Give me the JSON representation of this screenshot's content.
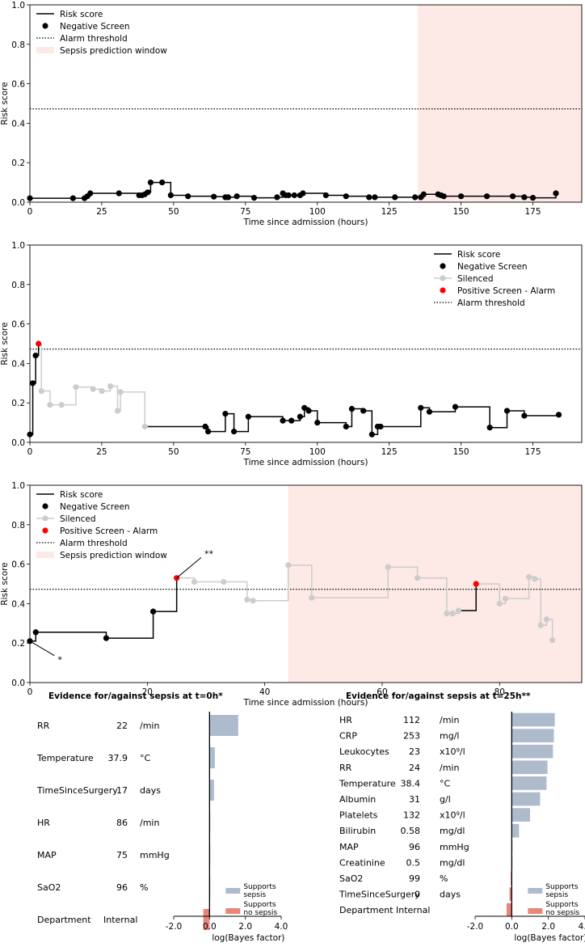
{
  "colors": {
    "line": "#000000",
    "negative": "#000000",
    "silenced": "#cccccc",
    "positive": "#ff0000",
    "window": "#fde9e6",
    "supports_sepsis": "#aebbcd",
    "supports_no_sepsis": "#e8867a"
  },
  "chart_data": [
    {
      "type": "line",
      "title": "",
      "xlabel": "Time since admission (hours)",
      "ylabel": "Risk score",
      "xlim": [
        0,
        192
      ],
      "ylim": [
        0,
        1.0
      ],
      "xticks": [
        0,
        25,
        50,
        75,
        100,
        125,
        150,
        175
      ],
      "yticks": [
        0.0,
        0.2,
        0.4,
        0.6,
        0.8,
        1.0
      ],
      "threshold": 0.473,
      "prediction_window": [
        135,
        192
      ],
      "legend": [
        "Risk score",
        "Negative Screen",
        "Alarm threshold",
        "Sepsis prediction window"
      ],
      "legend_position": "top-left",
      "series": [
        {
          "name": "Risk score",
          "status": "negative",
          "x": [
            0,
            15,
            19,
            20,
            21,
            31,
            38,
            39,
            40,
            41,
            42,
            46,
            49,
            55,
            64,
            68,
            69,
            72,
            78,
            86,
            88,
            89,
            90,
            92,
            94,
            95,
            103,
            110,
            118,
            120,
            127,
            134,
            136,
            137,
            142,
            143,
            144,
            150,
            159,
            168,
            172,
            175,
            183
          ],
          "y": [
            0.02,
            0.02,
            0.02,
            0.03,
            0.045,
            0.045,
            0.035,
            0.035,
            0.04,
            0.05,
            0.1,
            0.1,
            0.035,
            0.03,
            0.028,
            0.025,
            0.025,
            0.03,
            0.022,
            0.025,
            0.045,
            0.035,
            0.035,
            0.035,
            0.035,
            0.045,
            0.035,
            0.03,
            0.025,
            0.025,
            0.025,
            0.025,
            0.025,
            0.04,
            0.04,
            0.035,
            0.03,
            0.03,
            0.03,
            0.03,
            0.025,
            0.022,
            0.045
          ]
        }
      ]
    },
    {
      "type": "line",
      "title": "",
      "xlabel": "Time since admission (hours)",
      "ylabel": "Risk score",
      "xlim": [
        0,
        192
      ],
      "ylim": [
        0,
        1.0
      ],
      "xticks": [
        0,
        25,
        50,
        75,
        100,
        125,
        150,
        175
      ],
      "yticks": [
        0.0,
        0.2,
        0.4,
        0.6,
        0.8,
        1.0
      ],
      "threshold": 0.473,
      "prediction_window": null,
      "legend": [
        "Risk score",
        "Negative Screen",
        "Silenced",
        "Positive Screen - Alarm",
        "Alarm threshold"
      ],
      "legend_position": "top-right",
      "points": [
        {
          "x": 0,
          "y": 0.04,
          "s": "negative"
        },
        {
          "x": 1,
          "y": 0.3,
          "s": "negative"
        },
        {
          "x": 2,
          "y": 0.44,
          "s": "negative"
        },
        {
          "x": 3,
          "y": 0.5,
          "s": "positive"
        },
        {
          "x": 4,
          "y": 0.26,
          "s": "silenced"
        },
        {
          "x": 7,
          "y": 0.19,
          "s": "silenced"
        },
        {
          "x": 11,
          "y": 0.19,
          "s": "silenced"
        },
        {
          "x": 16,
          "y": 0.28,
          "s": "silenced"
        },
        {
          "x": 22,
          "y": 0.27,
          "s": "silenced"
        },
        {
          "x": 25,
          "y": 0.26,
          "s": "silenced"
        },
        {
          "x": 28,
          "y": 0.285,
          "s": "silenced"
        },
        {
          "x": 30.5,
          "y": 0.16,
          "s": "silenced"
        },
        {
          "x": 31.5,
          "y": 0.255,
          "s": "silenced"
        },
        {
          "x": 40,
          "y": 0.08,
          "s": "silenced"
        },
        {
          "x": 61,
          "y": 0.08,
          "s": "negative"
        },
        {
          "x": 62,
          "y": 0.055,
          "s": "negative"
        },
        {
          "x": 68,
          "y": 0.145,
          "s": "negative"
        },
        {
          "x": 71,
          "y": 0.055,
          "s": "negative"
        },
        {
          "x": 76,
          "y": 0.13,
          "s": "negative"
        },
        {
          "x": 88,
          "y": 0.11,
          "s": "negative"
        },
        {
          "x": 91,
          "y": 0.11,
          "s": "negative"
        },
        {
          "x": 94,
          "y": 0.13,
          "s": "negative"
        },
        {
          "x": 95.5,
          "y": 0.175,
          "s": "negative"
        },
        {
          "x": 97,
          "y": 0.16,
          "s": "negative"
        },
        {
          "x": 100,
          "y": 0.1,
          "s": "negative"
        },
        {
          "x": 110,
          "y": 0.08,
          "s": "negative"
        },
        {
          "x": 112,
          "y": 0.17,
          "s": "negative"
        },
        {
          "x": 116,
          "y": 0.16,
          "s": "negative"
        },
        {
          "x": 119,
          "y": 0.04,
          "s": "negative"
        },
        {
          "x": 121,
          "y": 0.08,
          "s": "negative"
        },
        {
          "x": 122,
          "y": 0.08,
          "s": "negative"
        },
        {
          "x": 136,
          "y": 0.175,
          "s": "negative"
        },
        {
          "x": 139,
          "y": 0.155,
          "s": "negative"
        },
        {
          "x": 148,
          "y": 0.18,
          "s": "negative"
        },
        {
          "x": 160,
          "y": 0.075,
          "s": "negative"
        },
        {
          "x": 166,
          "y": 0.16,
          "s": "negative"
        },
        {
          "x": 172,
          "y": 0.135,
          "s": "negative"
        },
        {
          "x": 184,
          "y": 0.14,
          "s": "negative"
        }
      ]
    },
    {
      "type": "line",
      "title": "",
      "xlabel": "Time since admission (hours)",
      "ylabel": "Risk score",
      "xlim": [
        0,
        94
      ],
      "ylim": [
        0,
        1.0
      ],
      "xticks": [
        0,
        20,
        40,
        60,
        80
      ],
      "yticks": [
        0.0,
        0.2,
        0.4,
        0.6,
        0.8,
        1.0
      ],
      "threshold": 0.473,
      "prediction_window": [
        44,
        94
      ],
      "legend": [
        "Risk score",
        "Negative Screen",
        "Silenced",
        "Positive Screen - Alarm",
        "Alarm threshold",
        "Sepsis prediction window"
      ],
      "legend_position": "top-left",
      "annotations": [
        {
          "text": "*",
          "x": 0,
          "y": 0.21,
          "tx": 5,
          "ty": 0.12
        },
        {
          "text": "**",
          "x": 25,
          "y": 0.53,
          "tx": 30,
          "ty": 0.65
        }
      ],
      "points": [
        {
          "x": 0,
          "y": 0.21,
          "s": "negative"
        },
        {
          "x": 1,
          "y": 0.255,
          "s": "negative"
        },
        {
          "x": 13,
          "y": 0.225,
          "s": "negative"
        },
        {
          "x": 21,
          "y": 0.36,
          "s": "negative"
        },
        {
          "x": 25,
          "y": 0.53,
          "s": "positive"
        },
        {
          "x": 28,
          "y": 0.51,
          "s": "silenced"
        },
        {
          "x": 33,
          "y": 0.51,
          "s": "silenced"
        },
        {
          "x": 37,
          "y": 0.42,
          "s": "silenced"
        },
        {
          "x": 38,
          "y": 0.415,
          "s": "silenced"
        },
        {
          "x": 44,
          "y": 0.595,
          "s": "silenced"
        },
        {
          "x": 48,
          "y": 0.43,
          "s": "silenced"
        },
        {
          "x": 61,
          "y": 0.585,
          "s": "silenced"
        },
        {
          "x": 66,
          "y": 0.53,
          "s": "silenced"
        },
        {
          "x": 71,
          "y": 0.35,
          "s": "silenced"
        },
        {
          "x": 72,
          "y": 0.35,
          "s": "silenced"
        },
        {
          "x": 73,
          "y": 0.365,
          "s": "silenced"
        },
        {
          "x": 76,
          "y": 0.5,
          "s": "positive"
        },
        {
          "x": 80,
          "y": 0.4,
          "s": "silenced"
        },
        {
          "x": 81,
          "y": 0.425,
          "s": "silenced"
        },
        {
          "x": 85,
          "y": 0.535,
          "s": "silenced"
        },
        {
          "x": 86,
          "y": 0.525,
          "s": "silenced"
        },
        {
          "x": 87,
          "y": 0.29,
          "s": "silenced"
        },
        {
          "x": 88,
          "y": 0.32,
          "s": "silenced"
        },
        {
          "x": 89,
          "y": 0.215,
          "s": "silenced"
        }
      ]
    },
    {
      "type": "bar",
      "orientation": "horizontal",
      "title": "Evidence for/against sepsis at t=0h*",
      "xlabel": "log(Bayes factor)",
      "xlim": [
        -2.0,
        4.0
      ],
      "xticks": [
        "-2.0",
        "0.0",
        "2.0",
        "4.0"
      ],
      "legend": [
        "Supports sepsis",
        "Supports no sepsis"
      ],
      "legend_position": "bottom-right",
      "rows": [
        {
          "name": "RR",
          "value": "22",
          "unit": "/min",
          "bar": 1.6
        },
        {
          "name": "Temperature",
          "value": "37.9",
          "unit": "°C",
          "bar": 0.3
        },
        {
          "name": "TimeSinceSurgery",
          "value": "17",
          "unit": "days",
          "bar": 0.25
        },
        {
          "name": "HR",
          "value": "86",
          "unit": "/min",
          "bar": 0.03
        },
        {
          "name": "MAP",
          "value": "75",
          "unit": "mmHg",
          "bar": 0.02
        },
        {
          "name": "SaO2",
          "value": "96",
          "unit": "%",
          "bar": 0.01
        },
        {
          "name": "Department",
          "value": "Internal",
          "unit": "",
          "bar": -0.35
        }
      ]
    },
    {
      "type": "bar",
      "orientation": "horizontal",
      "title": "Evidence for/against sepsis at t=25h**",
      "xlabel": "log(Bayes factor)",
      "xlim": [
        -2.0,
        4.0
      ],
      "xticks": [
        "-2.0",
        "0.0",
        "2.0",
        "4.0"
      ],
      "legend": [
        "Supports sepsis",
        "Supports no sepsis"
      ],
      "legend_position": "bottom-right",
      "rows": [
        {
          "name": "HR",
          "value": "112",
          "unit": "/min",
          "bar": 2.35
        },
        {
          "name": "CRP",
          "value": "253",
          "unit": "mg/l",
          "bar": 2.3
        },
        {
          "name": "Leukocytes",
          "value": "23",
          "unit": "x10⁹/l",
          "bar": 2.25
        },
        {
          "name": "RR",
          "value": "24",
          "unit": "/min",
          "bar": 1.95
        },
        {
          "name": "Temperature",
          "value": "38.4",
          "unit": "°C",
          "bar": 1.9
        },
        {
          "name": "Albumin",
          "value": "31",
          "unit": "g/l",
          "bar": 1.55
        },
        {
          "name": "Platelets",
          "value": "132",
          "unit": "x10⁹/l",
          "bar": 1.0
        },
        {
          "name": "Bilirubin",
          "value": "0.58",
          "unit": "mg/dl",
          "bar": 0.4
        },
        {
          "name": "MAP",
          "value": "96",
          "unit": "mmHg",
          "bar": 0.03
        },
        {
          "name": "Creatinine",
          "value": "0.5",
          "unit": "mg/dl",
          "bar": 0.02
        },
        {
          "name": "SaO2",
          "value": "99",
          "unit": "%",
          "bar": -0.05
        },
        {
          "name": "TimeSinceSurgery",
          "value": "0",
          "unit": "days",
          "bar": -0.12
        },
        {
          "name": "Department",
          "value": "Internal",
          "unit": "",
          "bar": -0.28
        }
      ]
    }
  ]
}
